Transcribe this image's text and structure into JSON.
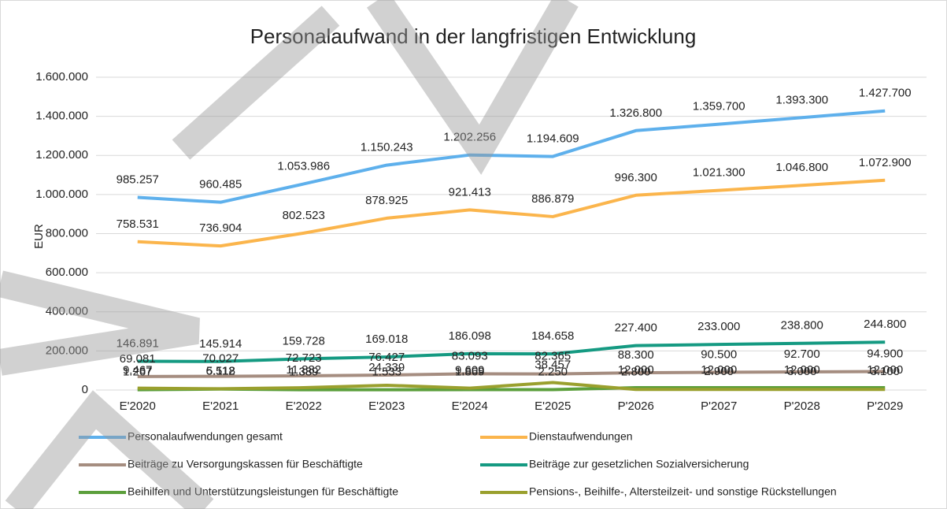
{
  "chart_data": {
    "type": "line",
    "title": "Personalaufwand in der langfristigen Entwicklung",
    "y_label": "EUR",
    "categories": [
      "E'2020",
      "E'2021",
      "E'2022",
      "E'2023",
      "E'2024",
      "E'2025",
      "P'2026",
      "P'2027",
      "P'2028",
      "P'2029"
    ],
    "ylim": [
      0,
      1600000
    ],
    "yticks": [
      0,
      {
        "value": 200000,
        "label": "200.000"
      },
      {
        "value": 400000,
        "label": "400.000"
      },
      {
        "value": 600000,
        "label": "600.000"
      },
      {
        "value": 800000,
        "label": "800.000"
      },
      {
        "value": 1000000,
        "label": "1.000.000"
      },
      {
        "value": 1200000,
        "label": "1.200.000"
      },
      {
        "value": 1400000,
        "label": "1.400.000"
      },
      {
        "value": 1600000,
        "label": "1.600.000"
      }
    ],
    "grid": true,
    "series": [
      {
        "name": "Personalaufwendungen gesamt",
        "color": "#5eb0ec",
        "values": [
          985257,
          960485,
          1053986,
          1150243,
          1202256,
          1194609,
          1326800,
          1359700,
          1393300,
          1427700
        ],
        "value_labels": [
          "985.257",
          "960.485",
          "1.053.986",
          "1.150.243",
          "1.202.256",
          "1.194.609",
          "1.326.800",
          "1.359.700",
          "1.393.300",
          "1.427.700"
        ]
      },
      {
        "name": "Dienstaufwendungen",
        "color": "#fbb54c",
        "values": [
          758531,
          736904,
          802523,
          878925,
          921413,
          886879,
          996300,
          1021300,
          1046800,
          1072900
        ],
        "value_labels": [
          "758.531",
          "736.904",
          "802.523",
          "878.925",
          "921.413",
          "886.879",
          "996.300",
          "1.021.300",
          "1.046.800",
          "1.072.900"
        ]
      },
      {
        "name": "Beiträge zu Versorgungskassen für Beschäftigte",
        "color": "#a58d80",
        "values": [
          69081,
          70027,
          72723,
          76427,
          83093,
          82365,
          88300,
          90500,
          92700,
          94900
        ],
        "value_labels": [
          "69.081",
          "70.027",
          "72.723",
          "76.427",
          "83.093",
          "82.365",
          "88.300",
          "90.500",
          "92.700",
          "94.900"
        ]
      },
      {
        "name": "Beiträge zur gesetzlichen Sozialversicherung",
        "color": "#159a82",
        "values": [
          146891,
          145914,
          159728,
          169018,
          186098,
          184658,
          227400,
          233000,
          238800,
          244800
        ],
        "value_labels": [
          "146.891",
          "145.914",
          "159.728",
          "169.018",
          "186.098",
          "184.658",
          "227.400",
          "233.000",
          "238.800",
          "244.800"
        ]
      },
      {
        "name": "Beihilfen und Unterstützungsleistungen für Beschäftigte",
        "color": "#5c9f3c",
        "values": [
          1267,
          5112,
          1389,
          1533,
          1869,
          2250,
          12000,
          12000,
          12000,
          12000
        ],
        "value_labels": [
          "1.267",
          "5.112",
          "1.389",
          "1.533",
          "1.869",
          "2.250",
          "12.000",
          "12.000",
          "12.000",
          "12.000"
        ]
      },
      {
        "name": "Pensions-, Beihilfe-, Altersteilzeit- und sonstige Rückstellungen",
        "color": "#9aa02e",
        "values": [
          9467,
          6518,
          11882,
          24339,
          9609,
          38457,
          2800,
          2900,
          3000,
          3100
        ],
        "value_labels": [
          "9.467",
          "6.518",
          "11.882",
          "24.339",
          "9.609",
          "38.457",
          "2.800",
          "2.900",
          "3.000",
          "3.100"
        ]
      }
    ]
  }
}
